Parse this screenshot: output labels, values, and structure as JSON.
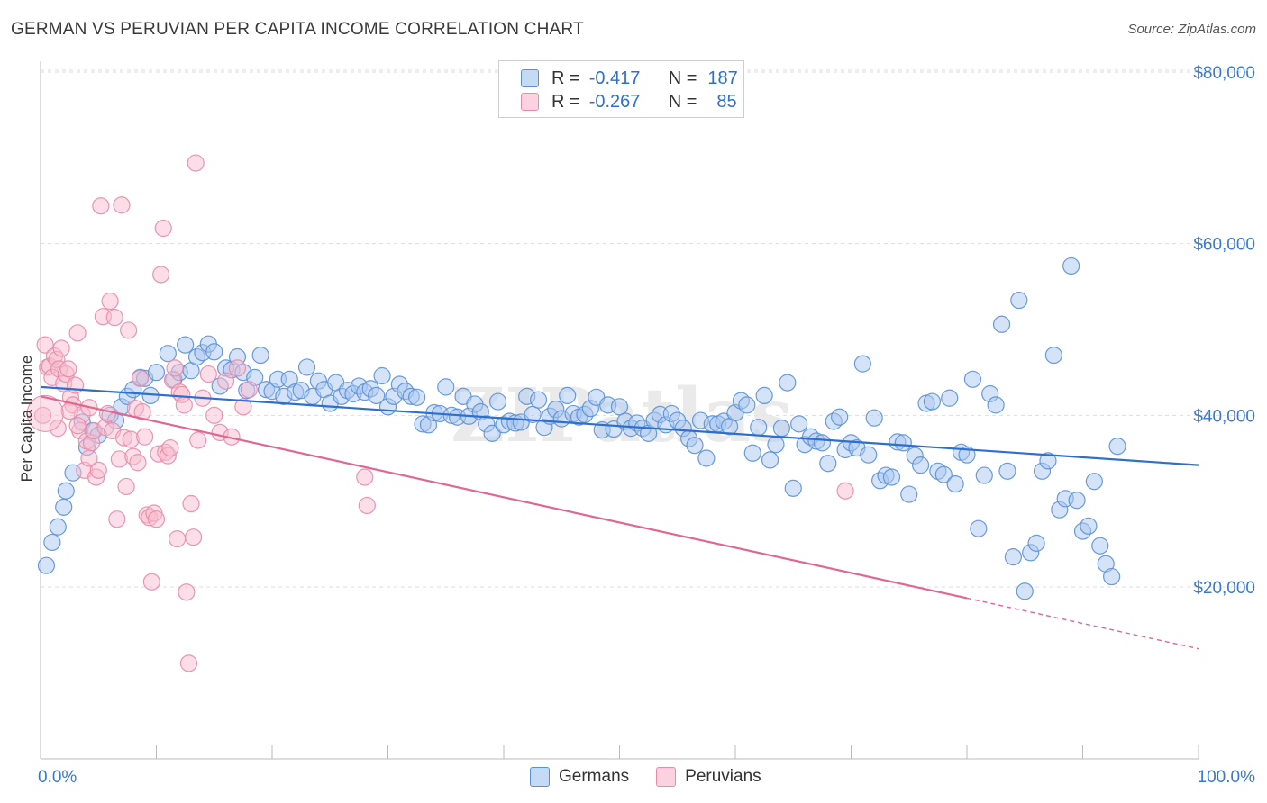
{
  "title": "GERMAN VS PERUVIAN PER CAPITA INCOME CORRELATION CHART",
  "source": "Source: ZipAtlas.com",
  "watermark": "ZIPatlas",
  "legend_top": [
    {
      "r_label": "R =",
      "r_value": "-0.417",
      "n_label": "N =",
      "n_value": "187"
    },
    {
      "r_label": "R =",
      "r_value": "-0.267",
      "n_label": "N =",
      "n_value": "85"
    }
  ],
  "legend_bottom": [
    "Germans",
    "Peruvians"
  ],
  "colors": {
    "germans_fill": "#a9c8ef",
    "germans_stroke": "#5a90d8",
    "germans_line": "#2d6fd0",
    "peruvians_fill": "#f7bdd0",
    "peruvians_stroke": "#e98aa8",
    "peruvians_line": "#e06890",
    "axis_label": "#3a78d0",
    "grid": "#dddddd"
  },
  "chart_data": {
    "type": "scatter",
    "ylabel": "Per Capita Income",
    "x_tick_labels": [
      "0.0%",
      "100.0%"
    ],
    "y_tick_labels": [
      "$20,000",
      "$40,000",
      "$60,000",
      "$80,000"
    ],
    "y_ticks": [
      20000,
      40000,
      60000,
      80000
    ],
    "xlim": [
      0,
      100
    ],
    "ylim": [
      0,
      82000
    ],
    "grid": true,
    "series": [
      {
        "name": "Germans",
        "r": -0.417,
        "n": 187,
        "trend": {
          "x": [
            0,
            100
          ],
          "y": [
            43300,
            34200
          ]
        },
        "points": [
          [
            0.5,
            22500
          ],
          [
            1,
            25200
          ],
          [
            1.5,
            27000
          ],
          [
            2,
            29300
          ],
          [
            2.2,
            31200
          ],
          [
            2.8,
            33300
          ],
          [
            3.6,
            39200
          ],
          [
            4,
            36300
          ],
          [
            4.5,
            38200
          ],
          [
            5,
            37700
          ],
          [
            6,
            40000
          ],
          [
            6.5,
            39400
          ],
          [
            7,
            41000
          ],
          [
            7.5,
            42200
          ],
          [
            8,
            43000
          ],
          [
            8.6,
            44400
          ],
          [
            9,
            44300
          ],
          [
            9.5,
            42300
          ],
          [
            10,
            45000
          ],
          [
            11,
            47200
          ],
          [
            11.5,
            44200
          ],
          [
            12,
            45000
          ],
          [
            12.5,
            48200
          ],
          [
            13,
            45200
          ],
          [
            13.5,
            46800
          ],
          [
            14,
            47300
          ],
          [
            14.5,
            48300
          ],
          [
            15,
            47400
          ],
          [
            15.5,
            43400
          ],
          [
            16,
            45500
          ],
          [
            16.5,
            45300
          ],
          [
            17,
            46800
          ],
          [
            17.5,
            45000
          ],
          [
            17.8,
            42900
          ],
          [
            18.5,
            44400
          ],
          [
            19,
            47000
          ],
          [
            19.5,
            43000
          ],
          [
            20,
            42800
          ],
          [
            20.5,
            44200
          ],
          [
            21,
            42200
          ],
          [
            21.5,
            44200
          ],
          [
            22,
            42700
          ],
          [
            22.5,
            42900
          ],
          [
            23,
            45600
          ],
          [
            23.5,
            42200
          ],
          [
            24,
            44000
          ],
          [
            24.5,
            43000
          ],
          [
            25,
            41400
          ],
          [
            25.5,
            43800
          ],
          [
            26,
            42200
          ],
          [
            26.5,
            42900
          ],
          [
            27,
            42500
          ],
          [
            27.5,
            43400
          ],
          [
            28,
            42700
          ],
          [
            28.5,
            43100
          ],
          [
            29,
            42300
          ],
          [
            29.5,
            44600
          ],
          [
            30,
            41000
          ],
          [
            30.5,
            42200
          ],
          [
            31,
            43600
          ],
          [
            31.5,
            42800
          ],
          [
            32,
            42200
          ],
          [
            32.5,
            42100
          ],
          [
            33,
            39000
          ],
          [
            33.5,
            38900
          ],
          [
            34,
            40300
          ],
          [
            34.5,
            40200
          ],
          [
            35,
            43300
          ],
          [
            35.5,
            40000
          ],
          [
            36,
            39800
          ],
          [
            36.5,
            42200
          ],
          [
            37,
            39900
          ],
          [
            37.5,
            41300
          ],
          [
            38,
            40400
          ],
          [
            38.5,
            39000
          ],
          [
            39,
            37900
          ],
          [
            39.5,
            41600
          ],
          [
            40,
            38900
          ],
          [
            40.5,
            39300
          ],
          [
            41,
            39100
          ],
          [
            41.5,
            39200
          ],
          [
            42,
            42200
          ],
          [
            42.5,
            40100
          ],
          [
            43,
            41800
          ],
          [
            43.5,
            38600
          ],
          [
            44,
            39900
          ],
          [
            44.5,
            40700
          ],
          [
            45,
            39600
          ],
          [
            45.5,
            42300
          ],
          [
            46,
            40200
          ],
          [
            46.5,
            39800
          ],
          [
            47,
            40100
          ],
          [
            47.5,
            40800
          ],
          [
            48,
            42100
          ],
          [
            48.5,
            38300
          ],
          [
            49,
            41200
          ],
          [
            49.5,
            38400
          ],
          [
            50,
            41000
          ],
          [
            50.5,
            39300
          ],
          [
            51,
            38500
          ],
          [
            51.5,
            39100
          ],
          [
            52,
            38500
          ],
          [
            52.5,
            37900
          ],
          [
            53,
            39400
          ],
          [
            53.5,
            40100
          ],
          [
            54,
            38900
          ],
          [
            54.5,
            40200
          ],
          [
            55,
            39400
          ],
          [
            55.5,
            38500
          ],
          [
            56,
            37300
          ],
          [
            56.5,
            36500
          ],
          [
            57,
            39400
          ],
          [
            57.5,
            35000
          ],
          [
            58,
            39000
          ],
          [
            58.5,
            39000
          ],
          [
            59,
            39300
          ],
          [
            59.5,
            38700
          ],
          [
            60,
            40300
          ],
          [
            60.5,
            41700
          ],
          [
            61,
            41200
          ],
          [
            61.5,
            35600
          ],
          [
            62,
            38600
          ],
          [
            62.5,
            42300
          ],
          [
            63,
            34800
          ],
          [
            63.5,
            36600
          ],
          [
            64,
            38500
          ],
          [
            64.5,
            43800
          ],
          [
            65,
            31500
          ],
          [
            65.5,
            39000
          ],
          [
            66,
            36600
          ],
          [
            66.5,
            37500
          ],
          [
            67,
            37000
          ],
          [
            67.5,
            36800
          ],
          [
            68,
            34400
          ],
          [
            68.5,
            39300
          ],
          [
            69,
            39800
          ],
          [
            69.5,
            36000
          ],
          [
            70,
            36800
          ],
          [
            70.5,
            36200
          ],
          [
            71,
            46000
          ],
          [
            71.5,
            35400
          ],
          [
            72,
            39700
          ],
          [
            72.5,
            32400
          ],
          [
            73,
            33000
          ],
          [
            73.5,
            32800
          ],
          [
            74,
            36900
          ],
          [
            74.5,
            36800
          ],
          [
            75,
            30800
          ],
          [
            75.5,
            35300
          ],
          [
            76,
            34200
          ],
          [
            76.5,
            41400
          ],
          [
            77,
            41600
          ],
          [
            77.5,
            33500
          ],
          [
            78,
            33100
          ],
          [
            78.5,
            42000
          ],
          [
            79,
            32000
          ],
          [
            79.5,
            35700
          ],
          [
            80,
            35400
          ],
          [
            80.5,
            44200
          ],
          [
            81,
            26800
          ],
          [
            81.5,
            33000
          ],
          [
            82,
            42500
          ],
          [
            82.5,
            41200
          ],
          [
            83,
            50600
          ],
          [
            83.5,
            33500
          ],
          [
            84,
            23500
          ],
          [
            84.5,
            53400
          ],
          [
            85,
            19500
          ],
          [
            85.5,
            24000
          ],
          [
            86,
            25100
          ],
          [
            86.5,
            33500
          ],
          [
            87,
            34700
          ],
          [
            87.5,
            47000
          ],
          [
            88,
            29000
          ],
          [
            88.5,
            30300
          ],
          [
            89,
            57400
          ],
          [
            89.5,
            30100
          ],
          [
            90,
            26500
          ],
          [
            90.5,
            27100
          ],
          [
            91,
            32300
          ],
          [
            91.5,
            24800
          ],
          [
            92,
            22700
          ],
          [
            92.5,
            21200
          ],
          [
            93,
            36400
          ]
        ]
      },
      {
        "name": "Peruvians",
        "r": -0.267,
        "n": 85,
        "trend": {
          "x": [
            0,
            80
          ],
          "y": [
            42200,
            18700
          ]
        },
        "trend_dashed": {
          "x": [
            80,
            100
          ],
          "y": [
            18700,
            12800
          ]
        },
        "points": [
          [
            0.2,
            40000
          ],
          [
            0.4,
            48200
          ],
          [
            0.6,
            45600
          ],
          [
            0.8,
            45700
          ],
          [
            1,
            44400
          ],
          [
            1.2,
            46900
          ],
          [
            1.4,
            46500
          ],
          [
            1.6,
            45400
          ],
          [
            1.8,
            47800
          ],
          [
            2,
            43700
          ],
          [
            2.2,
            44800
          ],
          [
            2.4,
            45400
          ],
          [
            2.6,
            42100
          ],
          [
            2.8,
            41200
          ],
          [
            3,
            43500
          ],
          [
            3.2,
            49600
          ],
          [
            3.4,
            38200
          ],
          [
            3.6,
            40100
          ],
          [
            3.8,
            33600
          ],
          [
            4,
            37000
          ],
          [
            4.2,
            40900
          ],
          [
            4.4,
            36800
          ],
          [
            4.6,
            38200
          ],
          [
            4.8,
            32800
          ],
          [
            5,
            33600
          ],
          [
            5.2,
            64400
          ],
          [
            5.4,
            51500
          ],
          [
            5.6,
            38600
          ],
          [
            5.8,
            40200
          ],
          [
            6,
            53300
          ],
          [
            6.2,
            38200
          ],
          [
            6.4,
            51400
          ],
          [
            6.6,
            27900
          ],
          [
            6.8,
            34900
          ],
          [
            7,
            64500
          ],
          [
            7.2,
            37400
          ],
          [
            7.4,
            31700
          ],
          [
            7.6,
            49900
          ],
          [
            7.8,
            37200
          ],
          [
            8,
            35200
          ],
          [
            8.2,
            40800
          ],
          [
            8.4,
            34500
          ],
          [
            8.6,
            44300
          ],
          [
            8.8,
            40400
          ],
          [
            9,
            37500
          ],
          [
            9.2,
            28400
          ],
          [
            9.4,
            28100
          ],
          [
            9.6,
            20600
          ],
          [
            9.8,
            28600
          ],
          [
            10,
            27900
          ],
          [
            10.2,
            35500
          ],
          [
            10.4,
            56400
          ],
          [
            10.6,
            61800
          ],
          [
            10.8,
            35700
          ],
          [
            11,
            35300
          ],
          [
            11.2,
            36200
          ],
          [
            11.4,
            44100
          ],
          [
            11.6,
            45500
          ],
          [
            11.8,
            25600
          ],
          [
            12,
            42700
          ],
          [
            12.2,
            42400
          ],
          [
            12.4,
            41200
          ],
          [
            12.6,
            19400
          ],
          [
            12.8,
            11100
          ],
          [
            13,
            29700
          ],
          [
            13.2,
            25800
          ],
          [
            13.4,
            69400
          ],
          [
            13.6,
            37100
          ],
          [
            14,
            42000
          ],
          [
            14.5,
            44800
          ],
          [
            15,
            40000
          ],
          [
            15.5,
            38000
          ],
          [
            16,
            44000
          ],
          [
            16.5,
            37500
          ],
          [
            17,
            45500
          ],
          [
            17.5,
            41000
          ],
          [
            18,
            43000
          ],
          [
            28,
            32800
          ],
          [
            28.2,
            29500
          ],
          [
            69.5,
            31200
          ],
          [
            1.5,
            38500
          ],
          [
            2.5,
            40500
          ],
          [
            3.2,
            38800
          ],
          [
            4.2,
            35000
          ]
        ]
      }
    ]
  }
}
